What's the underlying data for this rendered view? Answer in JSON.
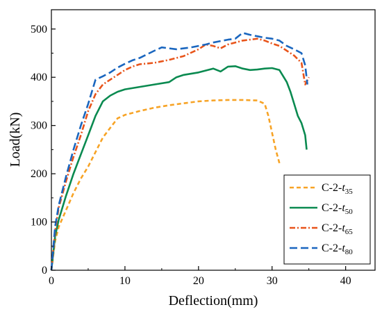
{
  "chart_data": {
    "type": "line",
    "xlabel": "Deflection(mm)",
    "ylabel": "Load(kN)",
    "xlim": [
      0,
      44
    ],
    "ylim": [
      0,
      540
    ],
    "xticks": [
      0,
      10,
      20,
      30,
      40
    ],
    "yticks": [
      0,
      100,
      200,
      300,
      400,
      500
    ],
    "grid": false,
    "legend_position": "bottom-right",
    "series": [
      {
        "name": "C-2-t35",
        "label_prefix": "C-2-",
        "label_var": "t",
        "label_sub": "35",
        "color": "#f7a325",
        "dash": "6,4",
        "x": [
          0,
          0.5,
          1,
          2,
          3,
          4,
          5,
          6,
          7,
          8,
          9,
          10,
          12,
          14,
          16,
          18,
          20,
          22,
          24,
          26,
          28,
          29,
          29.5,
          30,
          30.5,
          31
        ],
        "y": [
          0,
          60,
          90,
          125,
          160,
          190,
          215,
          245,
          275,
          295,
          315,
          322,
          330,
          337,
          342,
          346,
          350,
          352,
          353,
          353,
          352,
          345,
          320,
          285,
          250,
          222
        ]
      },
      {
        "name": "C-2-t50",
        "label_prefix": "C-2-",
        "label_var": "t",
        "label_sub": "50",
        "color": "#0a8a50",
        "dash": "",
        "x": [
          0,
          0.5,
          1,
          2,
          3,
          4,
          5,
          6,
          7,
          8,
          9,
          10,
          12,
          14,
          16,
          17,
          18,
          20,
          22,
          23,
          24,
          25,
          26,
          27,
          28,
          29,
          30,
          31,
          32,
          32.5,
          33,
          33.5,
          34,
          34.5,
          34.7
        ],
        "y": [
          0,
          70,
          105,
          155,
          200,
          240,
          280,
          320,
          350,
          362,
          370,
          375,
          380,
          385,
          390,
          400,
          405,
          410,
          418,
          412,
          422,
          423,
          418,
          415,
          416,
          418,
          419,
          415,
          390,
          370,
          345,
          320,
          305,
          280,
          250
        ]
      },
      {
        "name": "C-2-t65",
        "label_prefix": "C-2-",
        "label_var": "t",
        "label_sub": "65",
        "color": "#e8541a",
        "dash": "8,3,2,3",
        "x": [
          0,
          0.5,
          1,
          2,
          3,
          4,
          5,
          6,
          7,
          8,
          9,
          10,
          11,
          12,
          14,
          16,
          18,
          20,
          21,
          22,
          23,
          24,
          25,
          26,
          27,
          28,
          29,
          30,
          31,
          32,
          33,
          34,
          34.5,
          35
        ],
        "y": [
          0,
          80,
          130,
          185,
          235,
          280,
          330,
          365,
          385,
          395,
          405,
          415,
          422,
          427,
          430,
          436,
          444,
          458,
          468,
          465,
          460,
          468,
          472,
          476,
          478,
          480,
          476,
          470,
          465,
          455,
          445,
          430,
          385,
          400
        ]
      },
      {
        "name": "C-2-t80",
        "label_prefix": "C-2-",
        "label_var": "t",
        "label_sub": "80",
        "color": "#1a66bf",
        "dash": "11,5",
        "x": [
          0,
          0.5,
          1,
          2,
          3,
          4,
          5,
          6,
          7,
          8,
          9,
          10,
          11,
          12,
          14,
          15,
          16,
          17,
          18,
          19,
          20,
          21,
          22,
          23,
          24,
          25,
          26,
          27,
          28,
          29,
          30,
          31,
          32,
          33,
          34,
          34.5,
          34.8
        ],
        "y": [
          0,
          90,
          135,
          195,
          250,
          300,
          345,
          395,
          402,
          410,
          420,
          428,
          435,
          440,
          455,
          462,
          460,
          458,
          460,
          462,
          465,
          468,
          472,
          475,
          478,
          480,
          492,
          488,
          485,
          482,
          480,
          476,
          465,
          458,
          450,
          425,
          385
        ]
      }
    ]
  }
}
